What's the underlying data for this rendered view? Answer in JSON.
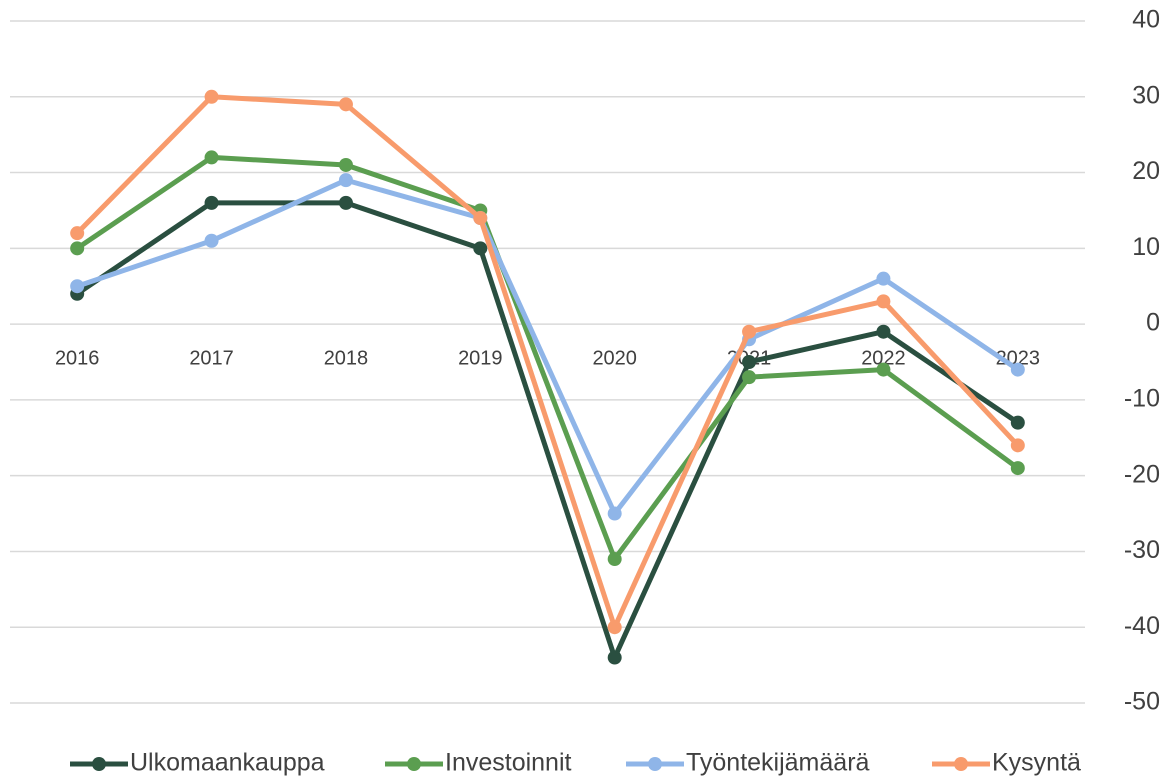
{
  "chart_data": {
    "type": "line",
    "categories": [
      "2016",
      "2017",
      "2018",
      "2019",
      "2020",
      "2021",
      "2022",
      "2023"
    ],
    "series": [
      {
        "name": "Ulkomaankauppa",
        "color": "#2a4f40",
        "values": [
          4,
          16,
          16,
          10,
          -44,
          -5,
          -1,
          -13
        ]
      },
      {
        "name": "Investoinnit",
        "color": "#5b9e50",
        "values": [
          10,
          22,
          21,
          15,
          -31,
          -7,
          -6,
          -19
        ]
      },
      {
        "name": "Työntekijämäärä",
        "color": "#8fb5e8",
        "values": [
          5,
          11,
          19,
          14,
          -25,
          -2,
          6,
          -6
        ]
      },
      {
        "name": "Kysyntä",
        "color": "#f89b6c",
        "values": [
          12,
          30,
          29,
          14,
          -40,
          -1,
          3,
          -16
        ]
      }
    ],
    "ylim": [
      -50,
      40
    ],
    "yticks": [
      -50,
      -40,
      -30,
      -20,
      -10,
      0,
      10,
      20,
      30,
      40
    ],
    "grid": true,
    "legend": "bottom"
  }
}
